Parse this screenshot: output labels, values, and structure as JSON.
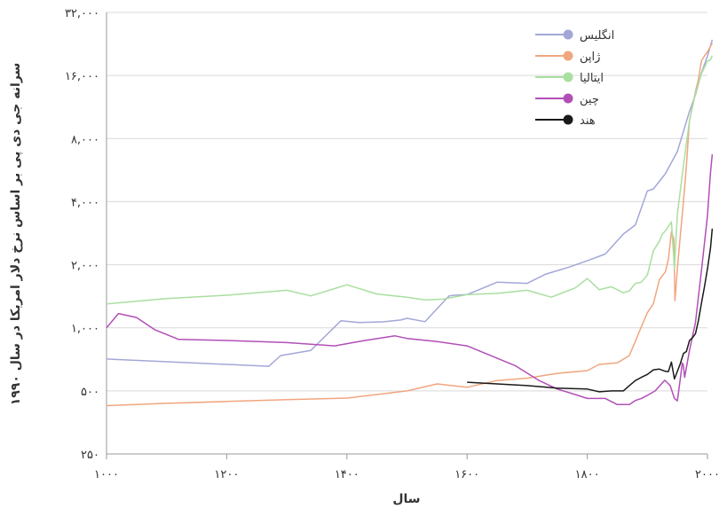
{
  "chart_data": {
    "type": "line",
    "xlabel": "سال",
    "ylabel": "سرانه جی دی پی بر اساس نرخ دلار امریکا در سال ۱۹۹۰",
    "xlim": [
      1000,
      2000
    ],
    "ylim": [
      250,
      32000
    ],
    "y_scale": "log2",
    "x_ticks": [
      1000,
      1200,
      1400,
      1600,
      1800,
      2000
    ],
    "x_tick_labels": [
      "۱۰۰۰",
      "۱۲۰۰",
      "۱۴۰۰",
      "۱۶۰۰",
      "۱۸۰۰",
      "۲۰۰۰"
    ],
    "y_ticks": [
      250,
      500,
      1000,
      2000,
      4000,
      8000,
      16000,
      32000
    ],
    "y_tick_labels": [
      "۲۵۰",
      "۵۰۰",
      "۱,۰۰۰",
      "۲,۰۰۰",
      "۴,۰۰۰",
      "۸,۰۰۰",
      "۱۶,۰۰۰",
      "۳۲,۰۰۰"
    ],
    "grid": true,
    "legend_position": "top-right",
    "series": [
      {
        "name": "انگلیس",
        "color": "#a3a7d8",
        "points": [
          [
            1000,
            710
          ],
          [
            1270,
            655
          ],
          [
            1290,
            737
          ],
          [
            1340,
            780
          ],
          [
            1390,
            1080
          ],
          [
            1420,
            1060
          ],
          [
            1460,
            1068
          ],
          [
            1490,
            1090
          ],
          [
            1500,
            1110
          ],
          [
            1530,
            1070
          ],
          [
            1570,
            1420
          ],
          [
            1580,
            1430
          ],
          [
            1600,
            1440
          ],
          [
            1650,
            1650
          ],
          [
            1700,
            1630
          ],
          [
            1730,
            1800
          ],
          [
            1770,
            1950
          ],
          [
            1800,
            2090
          ],
          [
            1830,
            2250
          ],
          [
            1860,
            2800
          ],
          [
            1880,
            3100
          ],
          [
            1900,
            4500
          ],
          [
            1910,
            4600
          ],
          [
            1930,
            5440
          ],
          [
            1950,
            6940
          ],
          [
            1960,
            8650
          ],
          [
            1970,
            10770
          ],
          [
            1980,
            12930
          ],
          [
            1990,
            16430
          ],
          [
            2000,
            19820
          ],
          [
            2008,
            23700
          ]
        ]
      },
      {
        "name": "ژاپن",
        "color": "#f0a67f",
        "points": [
          [
            1000,
            425
          ],
          [
            1100,
            436
          ],
          [
            1200,
            445
          ],
          [
            1300,
            454
          ],
          [
            1400,
            462
          ],
          [
            1500,
            500
          ],
          [
            1550,
            540
          ],
          [
            1600,
            520
          ],
          [
            1650,
            560
          ],
          [
            1700,
            575
          ],
          [
            1750,
            606
          ],
          [
            1800,
            625
          ],
          [
            1820,
            669
          ],
          [
            1850,
            680
          ],
          [
            1870,
            737
          ],
          [
            1880,
            863
          ],
          [
            1890,
            1012
          ],
          [
            1900,
            1180
          ],
          [
            1910,
            1304
          ],
          [
            1920,
            1696
          ],
          [
            1930,
            1850
          ],
          [
            1935,
            2120
          ],
          [
            1940,
            2874
          ],
          [
            1944,
            2659
          ],
          [
            1946,
            1346
          ],
          [
            1950,
            1921
          ],
          [
            1955,
            2771
          ],
          [
            1960,
            3986
          ],
          [
            1965,
            5934
          ],
          [
            1970,
            9714
          ],
          [
            1975,
            11344
          ],
          [
            1980,
            13428
          ],
          [
            1985,
            15331
          ],
          [
            1990,
            18789
          ],
          [
            1995,
            19849
          ],
          [
            2000,
            20738
          ],
          [
            2008,
            22816
          ]
        ]
      },
      {
        "name": "ایتالیا",
        "color": "#a9dfa0",
        "points": [
          [
            1000,
            1300
          ],
          [
            1100,
            1380
          ],
          [
            1200,
            1430
          ],
          [
            1300,
            1510
          ],
          [
            1340,
            1420
          ],
          [
            1400,
            1605
          ],
          [
            1450,
            1450
          ],
          [
            1500,
            1400
          ],
          [
            1530,
            1360
          ],
          [
            1560,
            1370
          ],
          [
            1600,
            1440
          ],
          [
            1650,
            1460
          ],
          [
            1700,
            1510
          ],
          [
            1740,
            1400
          ],
          [
            1780,
            1550
          ],
          [
            1800,
            1720
          ],
          [
            1820,
            1520
          ],
          [
            1840,
            1570
          ],
          [
            1860,
            1470
          ],
          [
            1870,
            1500
          ],
          [
            1880,
            1630
          ],
          [
            1890,
            1650
          ],
          [
            1900,
            1785
          ],
          [
            1910,
            2332
          ],
          [
            1920,
            2587
          ],
          [
            1925,
            2800
          ],
          [
            1930,
            2900
          ],
          [
            1940,
            3200
          ],
          [
            1945,
            1922
          ],
          [
            1950,
            3502
          ],
          [
            1960,
            5916
          ],
          [
            1970,
            9719
          ],
          [
            1980,
            13149
          ],
          [
            1990,
            16313
          ],
          [
            2000,
            18740
          ],
          [
            2005,
            19000
          ],
          [
            2008,
            19909
          ]
        ]
      },
      {
        "name": "چین",
        "color": "#b24fb7",
        "points": [
          [
            1000,
            1000
          ],
          [
            1020,
            1170
          ],
          [
            1050,
            1120
          ],
          [
            1080,
            980
          ],
          [
            1120,
            880
          ],
          [
            1200,
            870
          ],
          [
            1300,
            850
          ],
          [
            1380,
            820
          ],
          [
            1400,
            840
          ],
          [
            1430,
            870
          ],
          [
            1480,
            915
          ],
          [
            1500,
            890
          ],
          [
            1550,
            860
          ],
          [
            1600,
            820
          ],
          [
            1680,
            660
          ],
          [
            1720,
            560
          ],
          [
            1750,
            510
          ],
          [
            1780,
            480
          ],
          [
            1800,
            460
          ],
          [
            1830,
            460
          ],
          [
            1850,
            430
          ],
          [
            1870,
            430
          ],
          [
            1880,
            450
          ],
          [
            1890,
            460
          ],
          [
            1900,
            476
          ],
          [
            1913,
            500
          ],
          [
            1929,
            562
          ],
          [
            1938,
            530
          ],
          [
            1945,
            460
          ],
          [
            1950,
            448
          ],
          [
            1955,
            575
          ],
          [
            1958,
            680
          ],
          [
            1960,
            662
          ],
          [
            1962,
            580
          ],
          [
            1970,
            778
          ],
          [
            1980,
            1061
          ],
          [
            1990,
            1871
          ],
          [
            2000,
            3421
          ],
          [
            2005,
            5500
          ],
          [
            2008,
            6725
          ]
        ]
      },
      {
        "name": "هند",
        "color": "#1a1a1a",
        "points": [
          [
            1600,
            550
          ],
          [
            1650,
            540
          ],
          [
            1700,
            530
          ],
          [
            1750,
            515
          ],
          [
            1800,
            510
          ],
          [
            1820,
            495
          ],
          [
            1840,
            500
          ],
          [
            1850,
            500
          ],
          [
            1860,
            500
          ],
          [
            1870,
            530
          ],
          [
            1880,
            560
          ],
          [
            1890,
            580
          ],
          [
            1900,
            599
          ],
          [
            1910,
            630
          ],
          [
            1920,
            635
          ],
          [
            1930,
            620
          ],
          [
            1935,
            618
          ],
          [
            1940,
            686
          ],
          [
            1945,
            570
          ],
          [
            1950,
            619
          ],
          [
            1955,
            676
          ],
          [
            1960,
            753
          ],
          [
            1965,
            771
          ],
          [
            1970,
            868
          ],
          [
            1975,
            897
          ],
          [
            1980,
            938
          ],
          [
            1985,
            1080
          ],
          [
            1990,
            1309
          ],
          [
            1995,
            1568
          ],
          [
            2000,
            1910
          ],
          [
            2005,
            2400
          ],
          [
            2008,
            2975
          ]
        ]
      }
    ]
  }
}
